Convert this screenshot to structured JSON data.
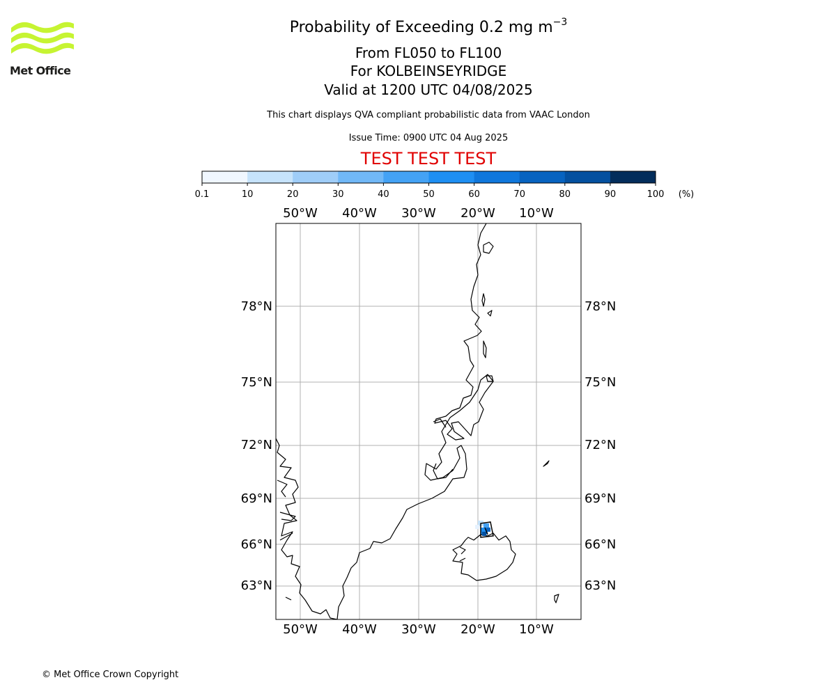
{
  "logo": {
    "text": "Met Office",
    "color": "#c6f432"
  },
  "title": {
    "line1_main": "Probability of Exceeding 0.2 mg m",
    "line1_exp": "−3",
    "line2": "From FL050 to FL100",
    "line3": "For KOLBEINSEYRIDGE",
    "line4": "Valid at 1200 UTC 04/08/2025"
  },
  "subtitle": "This chart displays QVA compliant probabilistic data from VAAC London",
  "issue_time": "Issue Time: 0900 UTC 04 Aug 2025",
  "test_banner": "TEST TEST TEST",
  "colorbar": {
    "ticks": [
      "0.1",
      "10",
      "20",
      "30",
      "40",
      "50",
      "60",
      "70",
      "80",
      "90",
      "100"
    ],
    "unit": "(%)",
    "colors": [
      "#f0f7ff",
      "#c6e3fb",
      "#9fcdf8",
      "#71b8f7",
      "#44a2f5",
      "#1e8ff3",
      "#0f77dc",
      "#0763c0",
      "#04509f",
      "#033f7e",
      "#032d5b"
    ]
  },
  "map": {
    "lon_labels": [
      "50°W",
      "40°W",
      "30°W",
      "20°W",
      "10°W"
    ],
    "lat_labels": [
      "78°N",
      "75°N",
      "72°N",
      "69°N",
      "66°N",
      "63°N"
    ]
  },
  "copyright": "© Met Office Crown Copyright"
}
